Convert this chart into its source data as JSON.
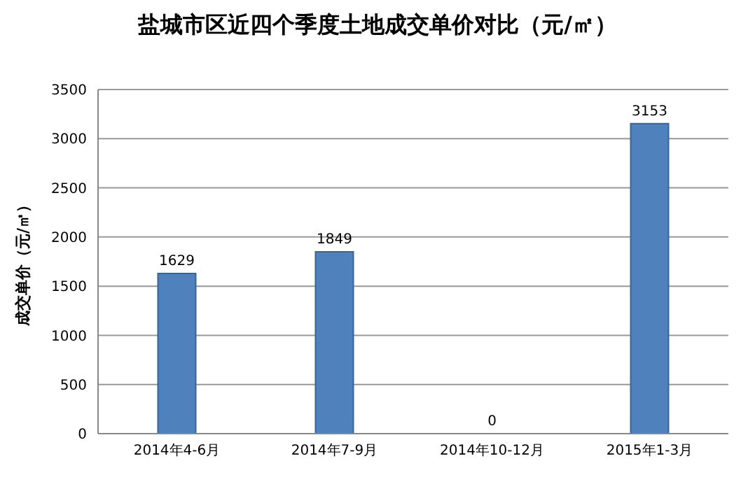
{
  "chart_data": {
    "type": "bar",
    "title": "盐城市区近四个季度土地成交单价对比（元/㎡）",
    "ylabel": "成交单价（元/㎡）",
    "categories": [
      "2014年4-6月",
      "2014年7-9月",
      "2014年10-12月",
      "2015年1-3月"
    ],
    "values": [
      1629,
      1849,
      0,
      3153
    ],
    "color": "#4f81bd",
    "ylim": [
      0,
      3500
    ],
    "yticks": [
      0,
      500,
      1000,
      1500,
      2000,
      2500,
      3000,
      3500
    ],
    "grid": "y",
    "data_labels": true
  }
}
